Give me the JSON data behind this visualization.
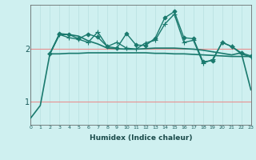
{
  "xlabel": "Humidex (Indice chaleur)",
  "bg_color": "#cff0f0",
  "line_color": "#1a7a6e",
  "grid_color_v": "#b8dfdf",
  "grid_color_h": "#e89090",
  "xmin": 0,
  "xmax": 23,
  "ymin": 0.55,
  "ymax": 2.85,
  "yticks": [
    1,
    2
  ],
  "xticks": [
    0,
    1,
    2,
    3,
    4,
    5,
    6,
    7,
    8,
    9,
    10,
    11,
    12,
    13,
    14,
    15,
    16,
    17,
    18,
    19,
    20,
    21,
    22,
    23
  ],
  "series": [
    {
      "x": [
        0,
        1,
        2,
        3,
        4,
        5,
        6,
        7,
        8,
        9,
        10,
        11,
        12,
        13,
        14,
        15,
        16,
        17,
        18,
        19,
        20,
        21,
        22,
        23
      ],
      "y": [
        0.68,
        0.92,
        1.91,
        2.28,
        2.28,
        2.25,
        2.16,
        2.1,
        2.02,
        2.01,
        2.0,
        2.0,
        2.01,
        2.02,
        2.02,
        2.02,
        2.01,
        2.0,
        1.98,
        1.95,
        1.92,
        1.89,
        1.93,
        1.22
      ],
      "marker": null,
      "lw": 1.2
    },
    {
      "x": [
        2,
        3,
        4,
        5,
        6,
        7,
        8,
        9,
        10,
        11,
        12,
        13,
        14,
        15,
        16,
        17,
        18,
        19,
        20,
        21,
        22,
        23
      ],
      "y": [
        1.91,
        1.91,
        1.92,
        1.92,
        1.93,
        1.93,
        1.93,
        1.93,
        1.93,
        1.93,
        1.93,
        1.92,
        1.92,
        1.91,
        1.91,
        1.9,
        1.89,
        1.88,
        1.87,
        1.86,
        1.86,
        1.86
      ],
      "marker": null,
      "lw": 1.2
    },
    {
      "x": [
        2,
        3,
        4,
        5,
        6,
        7,
        8,
        9,
        10,
        11,
        12,
        13,
        14,
        15,
        16,
        17,
        18,
        19,
        20,
        21,
        22,
        23
      ],
      "y": [
        1.91,
        2.28,
        2.22,
        2.19,
        2.13,
        2.33,
        2.05,
        2.13,
        2.02,
        2.0,
        2.12,
        2.17,
        2.48,
        2.67,
        2.13,
        2.17,
        1.73,
        1.8,
        2.13,
        2.05,
        1.91,
        1.85
      ],
      "marker": "+",
      "lw": 1.0,
      "ms": 4
    },
    {
      "x": [
        2,
        3,
        4,
        5,
        6,
        7,
        8,
        9,
        10,
        11,
        12,
        13,
        14,
        15,
        16,
        17,
        18,
        19,
        20,
        21,
        22,
        23
      ],
      "y": [
        1.91,
        2.3,
        2.28,
        2.2,
        2.29,
        2.23,
        2.05,
        2.02,
        2.3,
        2.08,
        2.07,
        2.21,
        2.6,
        2.72,
        2.22,
        2.2,
        1.76,
        1.78,
        2.13,
        2.05,
        1.93,
        1.87
      ],
      "marker": "D",
      "lw": 1.0,
      "ms": 2.5
    }
  ]
}
